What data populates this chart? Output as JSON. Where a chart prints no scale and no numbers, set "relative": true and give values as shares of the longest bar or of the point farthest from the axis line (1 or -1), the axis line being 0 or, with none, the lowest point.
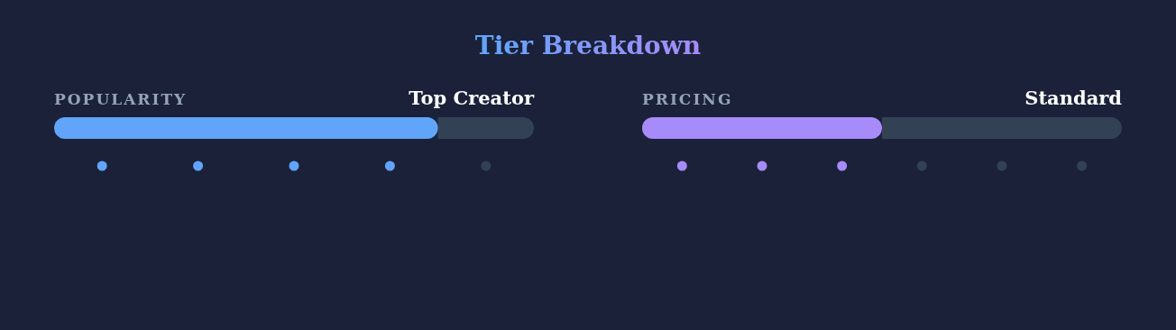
{
  "chart_data": [
    {
      "type": "bar",
      "title": "POPULARITY",
      "subtitle": "Top Creator",
      "annotations": [
        "Tier Breakdown"
      ],
      "orientation": "horizontal",
      "stacked": true,
      "relative": true,
      "categories": [
        null
      ],
      "series": [
        {
          "color": "#60a5fa",
          "values": [
            0.8
          ]
        },
        {
          "color": "#334155",
          "values": [
            0.2
          ]
        }
      ]
    },
    {
      "type": "bar",
      "title": "PRICING",
      "subtitle": "Standard",
      "orientation": "horizontal",
      "stacked": true,
      "relative": true,
      "categories": [
        null
      ],
      "series": [
        {
          "color": "#a78bfa",
          "values": [
            0.5
          ]
        },
        {
          "color": "#334155",
          "values": [
            0.5
          ]
        }
      ]
    }
  ]
}
